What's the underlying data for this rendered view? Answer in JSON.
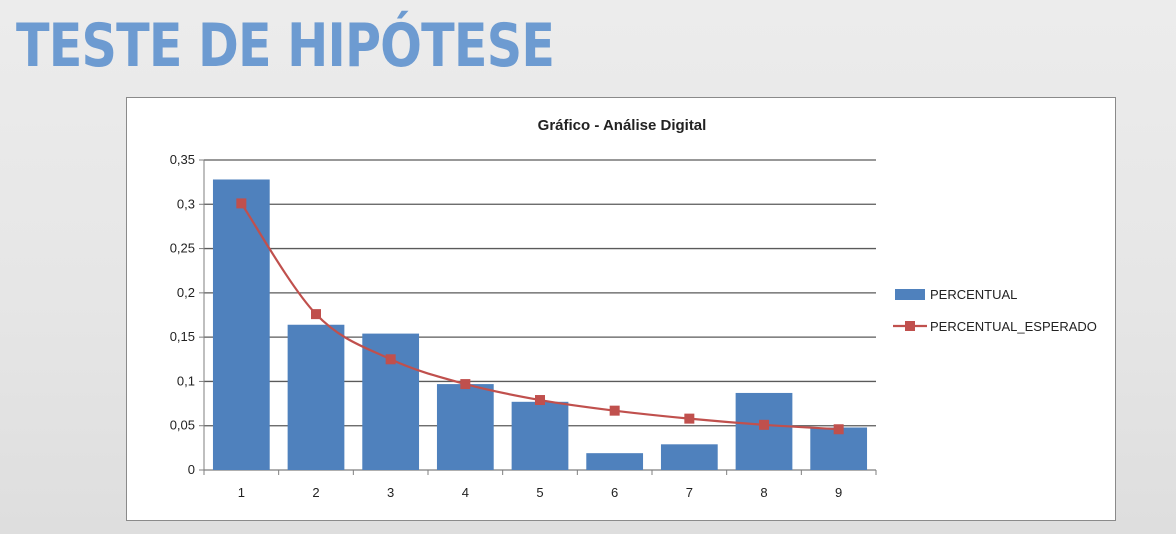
{
  "slide": {
    "title": "TESTE DE HIPÓTESE"
  },
  "chart_data": {
    "type": "bar",
    "title": "Gráfico - Análise Digital",
    "xlabel": "",
    "ylabel": "",
    "categories": [
      "1",
      "2",
      "3",
      "4",
      "5",
      "6",
      "7",
      "8",
      "9"
    ],
    "ylim": [
      0,
      0.35
    ],
    "yticks": [
      0,
      0.05,
      0.1,
      0.15,
      0.2,
      0.25,
      0.3,
      0.35
    ],
    "ytick_labels": [
      "0",
      "0,05",
      "0,1",
      "0,15",
      "0,2",
      "0,25",
      "0,3",
      "0,35"
    ],
    "grid": true,
    "legend_position": "right",
    "series": [
      {
        "name": "PERCENTUAL",
        "kind": "bar",
        "color": "#4f81bd",
        "values": [
          0.328,
          0.164,
          0.154,
          0.097,
          0.077,
          0.019,
          0.029,
          0.087,
          0.048
        ]
      },
      {
        "name": "PERCENTUAL_ESPERADO",
        "kind": "line",
        "marker": "square",
        "color": "#c0504d",
        "values": [
          0.301,
          0.176,
          0.125,
          0.097,
          0.079,
          0.067,
          0.058,
          0.051,
          0.046
        ]
      }
    ]
  }
}
